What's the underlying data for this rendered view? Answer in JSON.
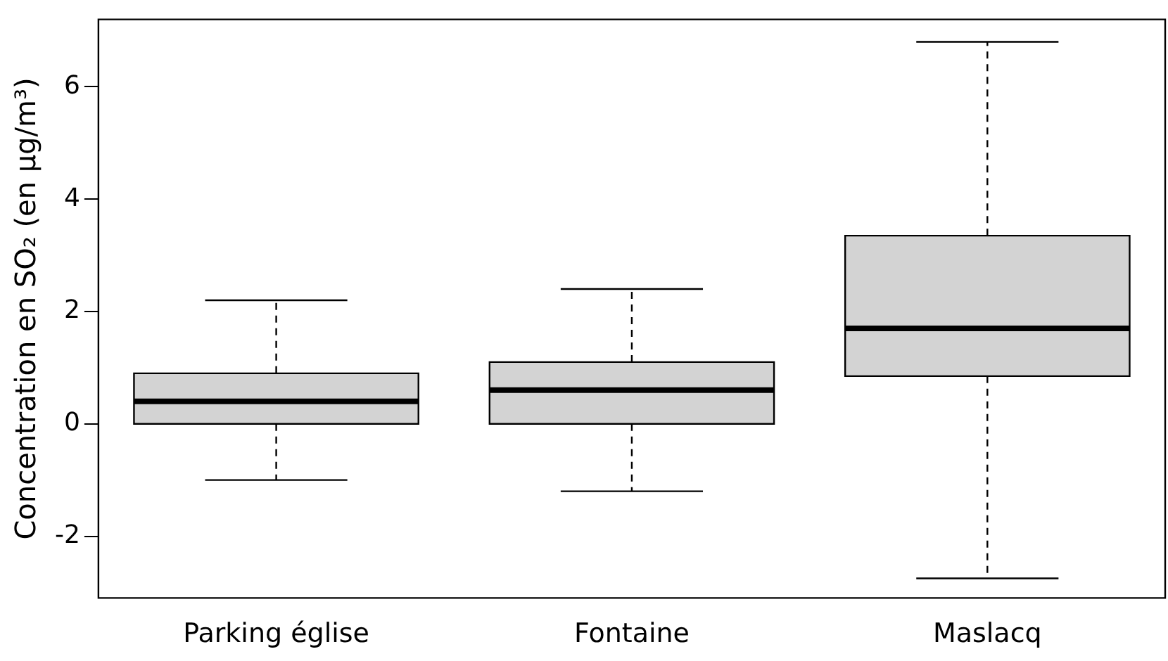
{
  "chart_data": {
    "type": "box",
    "ylabel": "Concentration en SO₂ (en µg/m³)",
    "categories": [
      "Parking église",
      "Fontaine",
      "Maslacq"
    ],
    "color": "#d3d3d3",
    "boxes": [
      {
        "low": -1,
        "q1": 0,
        "median": 0.4,
        "q3": 0.9,
        "high": 2.2
      },
      {
        "low": -1.2,
        "q1": 0,
        "median": 0.6,
        "q3": 1.1,
        "high": 2.4
      },
      {
        "low": -2.75,
        "q1": 0.85,
        "median": 1.7,
        "q3": 3.35,
        "high": 6.8
      }
    ],
    "ylim": [
      -3.1,
      7.2
    ],
    "yticks": [
      -2,
      0,
      2,
      4,
      6
    ],
    "grid": false
  }
}
